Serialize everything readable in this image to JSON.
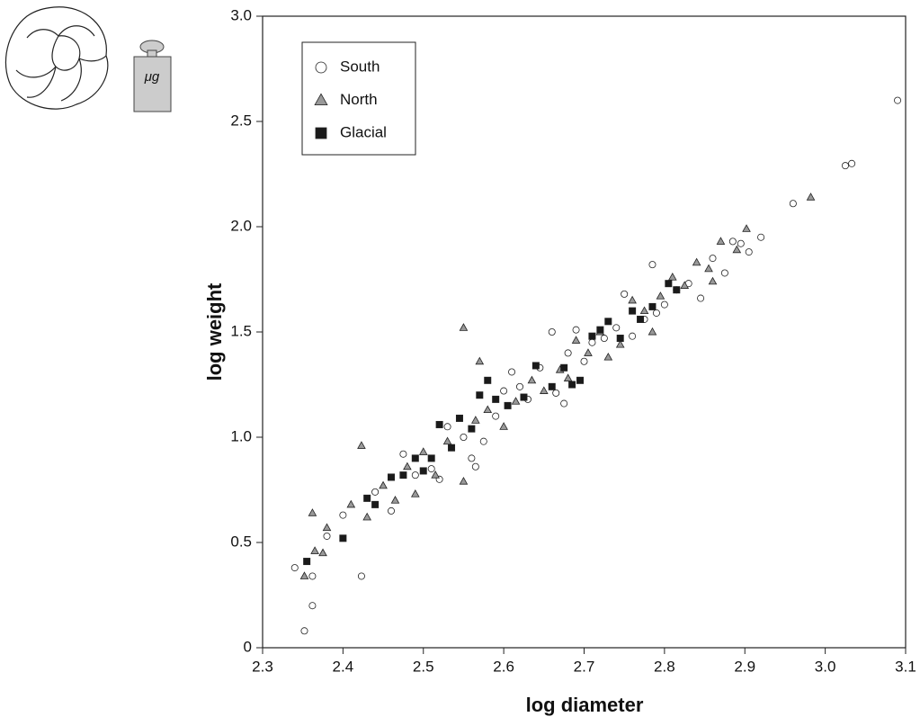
{
  "chart_data": {
    "type": "scatter",
    "annotation": "μg",
    "xlabel": "log diameter",
    "ylabel": "log weight",
    "xlim": [
      2.3,
      3.1
    ],
    "ylim": [
      0,
      3
    ],
    "xticks": [
      2.3,
      2.4,
      2.5,
      2.6,
      2.7,
      2.8,
      2.9,
      {
        "value": 3,
        "label": "3.0"
      },
      3.1
    ],
    "yticks": [
      0,
      0.5,
      {
        "value": 1,
        "label": "1.0"
      },
      1.5,
      {
        "value": 2,
        "label": "2.0"
      },
      2.5,
      {
        "value": 3,
        "label": "3.0"
      }
    ],
    "legend": "upper left",
    "series": [
      {
        "name": "South",
        "marker": "circle",
        "color": "#ffffff",
        "x": [
          2.34,
          2.352,
          2.362,
          2.362,
          2.38,
          2.4,
          2.423,
          2.44,
          2.46,
          2.475,
          2.49,
          2.51,
          2.52,
          2.53,
          2.55,
          2.56,
          2.565,
          2.575,
          2.59,
          2.6,
          2.61,
          2.62,
          2.63,
          2.645,
          2.66,
          2.665,
          2.675,
          2.68,
          2.69,
          2.7,
          2.71,
          2.725,
          2.74,
          2.75,
          2.76,
          2.775,
          2.785,
          2.79,
          2.8,
          2.815,
          2.83,
          2.845,
          2.86,
          2.875,
          2.885,
          2.895,
          2.905,
          2.92,
          2.96,
          3.025,
          3.033,
          3.09
        ],
        "values": [
          0.38,
          0.08,
          0.2,
          0.34,
          0.53,
          0.63,
          0.34,
          0.74,
          0.65,
          0.92,
          0.82,
          0.85,
          0.8,
          1.05,
          1.0,
          0.9,
          0.86,
          0.98,
          1.1,
          1.22,
          1.31,
          1.24,
          1.18,
          1.33,
          1.5,
          1.21,
          1.16,
          1.4,
          1.51,
          1.36,
          1.45,
          1.47,
          1.52,
          1.68,
          1.48,
          1.56,
          1.82,
          1.59,
          1.63,
          1.7,
          1.73,
          1.66,
          1.85,
          1.78,
          1.93,
          1.92,
          1.88,
          1.95,
          2.11,
          2.29,
          2.3,
          2.6
        ]
      },
      {
        "name": "North",
        "marker": "triangle",
        "color": "#999999",
        "x": [
          2.352,
          2.362,
          2.365,
          2.375,
          2.38,
          2.41,
          2.423,
          2.43,
          2.45,
          2.465,
          2.48,
          2.49,
          2.5,
          2.515,
          2.53,
          2.55,
          2.55,
          2.565,
          2.57,
          2.58,
          2.6,
          2.615,
          2.635,
          2.65,
          2.67,
          2.68,
          2.69,
          2.705,
          2.72,
          2.73,
          2.745,
          2.76,
          2.775,
          2.785,
          2.795,
          2.81,
          2.825,
          2.84,
          2.855,
          2.87,
          2.86,
          2.89,
          2.902,
          2.982
        ],
        "values": [
          0.34,
          0.64,
          0.46,
          0.45,
          0.57,
          0.68,
          0.96,
          0.62,
          0.77,
          0.7,
          0.86,
          0.73,
          0.93,
          0.82,
          0.98,
          0.79,
          1.52,
          1.08,
          1.36,
          1.13,
          1.05,
          1.17,
          1.27,
          1.22,
          1.32,
          1.28,
          1.46,
          1.4,
          1.5,
          1.38,
          1.44,
          1.65,
          1.6,
          1.5,
          1.67,
          1.76,
          1.72,
          1.83,
          1.8,
          1.93,
          1.74,
          1.89,
          1.99,
          2.14
        ]
      },
      {
        "name": "Glacial",
        "marker": "square",
        "color": "#1a1a1a",
        "x": [
          2.355,
          2.4,
          2.43,
          2.44,
          2.46,
          2.475,
          2.49,
          2.5,
          2.51,
          2.52,
          2.535,
          2.545,
          2.56,
          2.57,
          2.58,
          2.59,
          2.605,
          2.625,
          2.64,
          2.66,
          2.675,
          2.685,
          2.695,
          2.71,
          2.72,
          2.73,
          2.745,
          2.76,
          2.77,
          2.785,
          2.805,
          2.815
        ],
        "values": [
          0.41,
          0.52,
          0.71,
          0.68,
          0.81,
          0.82,
          0.9,
          0.84,
          0.9,
          1.06,
          0.95,
          1.09,
          1.04,
          1.2,
          1.27,
          1.18,
          1.15,
          1.19,
          1.34,
          1.24,
          1.33,
          1.25,
          1.27,
          1.48,
          1.51,
          1.55,
          1.47,
          1.6,
          1.56,
          1.62,
          1.73,
          1.7
        ]
      }
    ]
  }
}
